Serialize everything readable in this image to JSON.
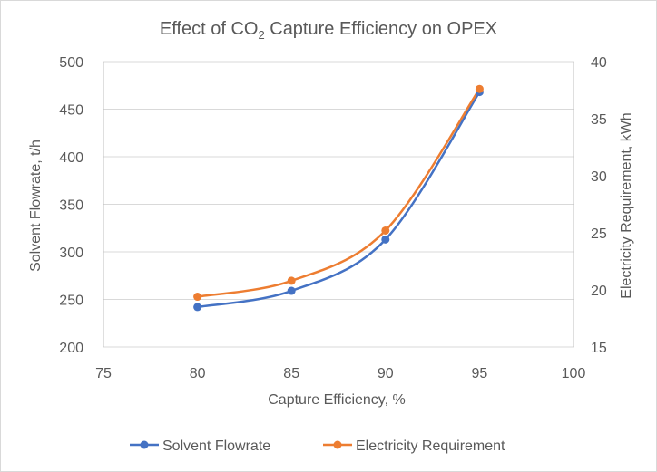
{
  "chart_data": {
    "type": "line",
    "title": {
      "prefix": "Effect of CO",
      "subscript": "2",
      "suffix": " Capture Efficiency on OPEX"
    },
    "xlabel": "Capture Efficiency, %",
    "ylabel": "Solvent Flowrate, t/h",
    "y2label": "Electricity Requirement, kWh",
    "xlim": [
      75,
      100
    ],
    "ylim": [
      200,
      500
    ],
    "y2lim": [
      15,
      40
    ],
    "xticks": [
      75,
      80,
      85,
      90,
      95,
      100
    ],
    "yticks": [
      200,
      250,
      300,
      350,
      400,
      450,
      500
    ],
    "y2ticks": [
      15,
      20,
      25,
      30,
      35,
      40
    ],
    "grid": "horizontal",
    "legend_position": "bottom",
    "x": [
      80,
      85,
      90,
      95
    ],
    "series": [
      {
        "name": "Solvent Flowrate",
        "axis": "left",
        "color": "#4472C4",
        "values": [
          242,
          259,
          313,
          468
        ]
      },
      {
        "name": "Electricity Requirement",
        "axis": "right",
        "color": "#ED7D31",
        "values": [
          19.4,
          20.8,
          25.2,
          37.6
        ]
      }
    ]
  }
}
